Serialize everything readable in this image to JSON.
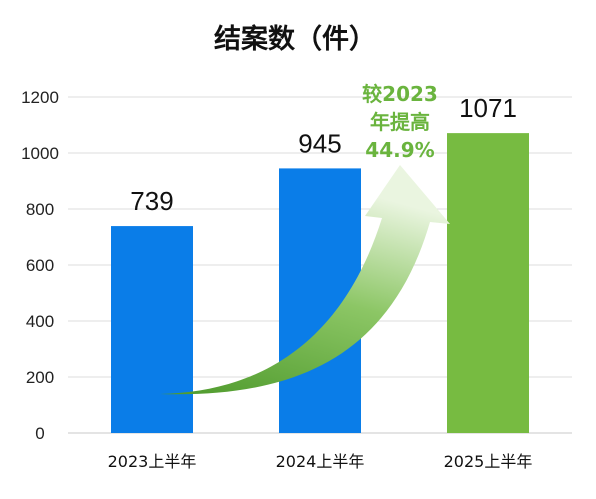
{
  "chart_data": {
    "type": "bar",
    "title": "结案数（件）",
    "categories": [
      "2023上半年",
      "2024上半年",
      "2025上半年"
    ],
    "values": [
      739,
      945,
      1071
    ],
    "ylim": [
      0,
      1200
    ],
    "yticks": [
      0,
      200,
      400,
      600,
      800,
      1000,
      1200
    ],
    "grid": true,
    "bar_colors": [
      "#0a7de8",
      "#0a7de8",
      "#77bb41"
    ],
    "annotation": {
      "lines": [
        "较2023",
        "年提高",
        "44.9%"
      ],
      "color": "#6ab43e"
    }
  }
}
